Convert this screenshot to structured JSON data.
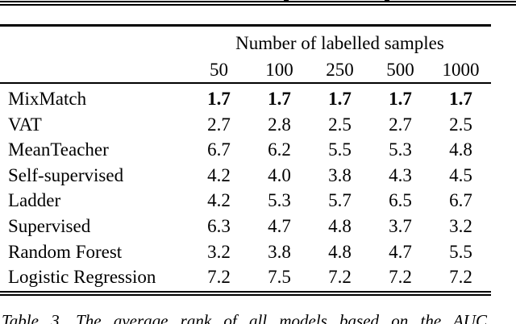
{
  "table": {
    "header_group": "Number of labelled samples",
    "columns": [
      "50",
      "100",
      "250",
      "500",
      "1000"
    ],
    "rows": [
      {
        "label": "MixMatch",
        "values": [
          "1.7",
          "1.7",
          "1.7",
          "1.7",
          "1.7"
        ]
      },
      {
        "label": "VAT",
        "values": [
          "2.7",
          "2.8",
          "2.5",
          "2.7",
          "2.5"
        ]
      },
      {
        "label": "MeanTeacher",
        "values": [
          "6.7",
          "6.2",
          "5.5",
          "5.3",
          "4.8"
        ]
      },
      {
        "label": "Self-supervised",
        "values": [
          "4.2",
          "4.0",
          "3.8",
          "4.3",
          "4.5"
        ]
      },
      {
        "label": "Ladder",
        "values": [
          "4.2",
          "5.3",
          "5.7",
          "6.5",
          "6.7"
        ]
      },
      {
        "label": "Supervised",
        "values": [
          "6.3",
          "4.7",
          "4.8",
          "3.7",
          "3.2"
        ]
      },
      {
        "label": "Random Forest",
        "values": [
          "3.2",
          "3.8",
          "4.8",
          "4.7",
          "5.5"
        ]
      },
      {
        "label": "Logistic Regression",
        "values": [
          "7.2",
          "7.5",
          "7.2",
          "7.2",
          "7.2"
        ]
      }
    ],
    "caption": "Table 3. The average rank of all models based on the AUC",
    "ink_color": "#000000",
    "background_color": "#ffffff"
  }
}
